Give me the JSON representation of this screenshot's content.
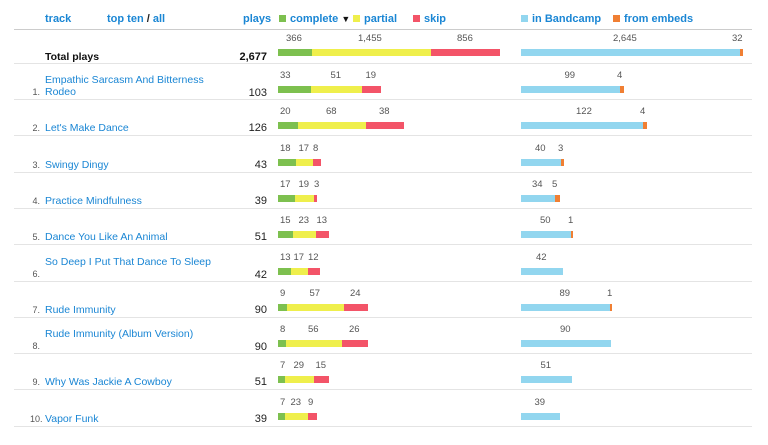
{
  "header": {
    "track_label": "track",
    "top_ten_label": "top ten",
    "separator": "/",
    "all_label": "all",
    "plays_label": "plays",
    "complete_label": "complete",
    "sort_indicator": "▼",
    "partial_label": "partial",
    "skip_label": "skip",
    "bandcamp_label": "in Bandcamp",
    "embeds_label": "from embeds"
  },
  "colors": {
    "complete": "#7dc04f",
    "partial": "#efef4c",
    "skip": "#f35468",
    "bandcamp": "#92d6ef",
    "embeds": "#f07f33",
    "link": "#1a86d4"
  },
  "total": {
    "label": "Total plays",
    "plays": "2,677",
    "complete": 366,
    "partial": 1455,
    "skip": 856,
    "bandcamp": 2645,
    "embeds": 32,
    "complete_text": "366",
    "partial_text": "1,455",
    "skip_text": "856",
    "bandcamp_text": "2,645",
    "embeds_text": "32"
  },
  "tracks": [
    {
      "index": "1.",
      "title": "Empathic Sarcasm And Bitterness Rodeo",
      "plays": "103",
      "complete": 33,
      "partial": 51,
      "skip": 19,
      "bandcamp": 99,
      "embeds": 4
    },
    {
      "index": "2.",
      "title": "Let's Make Dance",
      "plays": "126",
      "complete": 20,
      "partial": 68,
      "skip": 38,
      "bandcamp": 122,
      "embeds": 4
    },
    {
      "index": "3.",
      "title": "Swingy Dingy",
      "plays": "43",
      "complete": 18,
      "partial": 17,
      "skip": 8,
      "bandcamp": 40,
      "embeds": 3
    },
    {
      "index": "4.",
      "title": "Practice Mindfulness",
      "plays": "39",
      "complete": 17,
      "partial": 19,
      "skip": 3,
      "bandcamp": 34,
      "embeds": 5
    },
    {
      "index": "5.",
      "title": "Dance You Like An Animal",
      "plays": "51",
      "complete": 15,
      "partial": 23,
      "skip": 13,
      "bandcamp": 50,
      "embeds": 1
    },
    {
      "index": "6.",
      "title": "So Deep I Put That Dance To Sleep",
      "plays": "42",
      "complete": 13,
      "partial": 17,
      "skip": 12,
      "bandcamp": 42,
      "embeds": 0
    },
    {
      "index": "7.",
      "title": "Rude Immunity",
      "plays": "90",
      "complete": 9,
      "partial": 57,
      "skip": 24,
      "bandcamp": 89,
      "embeds": 1
    },
    {
      "index": "8.",
      "title": "Rude Immunity (Album Version)",
      "plays": "90",
      "complete": 8,
      "partial": 56,
      "skip": 26,
      "bandcamp": 90,
      "embeds": 0
    },
    {
      "index": "9.",
      "title": "Why Was Jackie A Cowboy",
      "plays": "51",
      "complete": 7,
      "partial": 29,
      "skip": 15,
      "bandcamp": 51,
      "embeds": 0
    },
    {
      "index": "10.",
      "title": "Vapor Funk",
      "plays": "39",
      "complete": 7,
      "partial": 23,
      "skip": 9,
      "bandcamp": 39,
      "embeds": 0
    }
  ]
}
